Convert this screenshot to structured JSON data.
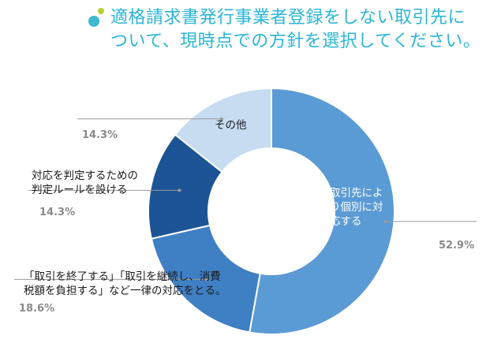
{
  "title_lines": [
    "適格請求書発行事業者登録をしない取引先に",
    "ついて、現時点での方針を選択してください。"
  ],
  "colors": {
    "title": "#2bb6d6",
    "dot_small": "#b2d235",
    "dot_large": "#3fb8d0"
  },
  "chart_data": {
    "type": "pie",
    "title": "適格請求書発行事業者登録をしない取引先について、現時点での方針を選択してください。",
    "donut": true,
    "unit": "%",
    "slices": [
      {
        "label": "取引先により個別に対応する",
        "label_lines": [
          "取引先によ",
          "り個別に対",
          "応する"
        ],
        "value": 52.9,
        "value_text": "52.9%",
        "color": "#5b9bd5"
      },
      {
        "label": "「取引を終了する」「取引を継続し、消費税額を負担する」など一律の対応をとる。",
        "label_lines": [
          "「取引を終了する」「取引を継続し、消費",
          "税額を負担する」など一律の対応をとる。"
        ],
        "value": 18.6,
        "value_text": "18.6%",
        "color": "#3f7fc4"
      },
      {
        "label": "対応を判定するための判定ルールを設ける",
        "label_lines": [
          "対応を判定するための",
          "判定ルールを設ける"
        ],
        "value": 14.3,
        "value_text": "14.3%",
        "color": "#1c5496"
      },
      {
        "label": "その他",
        "label_lines": [
          "その他"
        ],
        "value": 14.3,
        "value_text": "14.3%",
        "color": "#c7dcf1"
      }
    ]
  }
}
